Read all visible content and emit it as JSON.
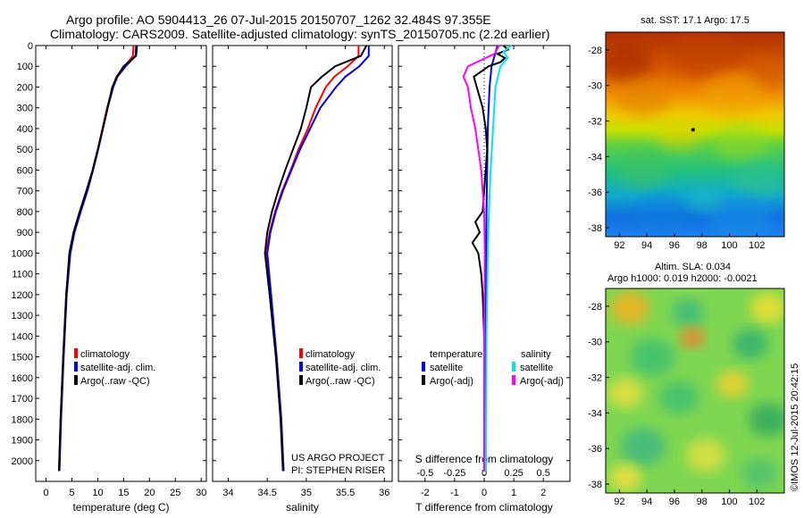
{
  "title_line1": "Argo profile: AO 5904413_26 07-Jul-2015 20150707_1262 32.484S 97.355E",
  "title_line2": "Climatology: CARS2009. Satellite-adjusted climatology: synTS_20150705.nc (2.2d earlier)",
  "credit_text": "US ARGO PROJECT",
  "credit_pi": "PI: STEPHEN RISER",
  "imos_stamp": "©IMOS 12-Jul-2015 20:42:15",
  "chart_data": [
    {
      "type": "line",
      "name": "temperature-profile",
      "xlabel": "temperature (deg C)",
      "ylabel": "",
      "xlim": [
        -2,
        31
      ],
      "ylim": [
        0,
        2100
      ],
      "y_inverted": true,
      "xticks": [
        0,
        5,
        10,
        15,
        20,
        25,
        30
      ],
      "yticks": [
        0,
        100,
        200,
        300,
        400,
        500,
        600,
        700,
        800,
        900,
        1000,
        1100,
        1200,
        1300,
        1400,
        1500,
        1600,
        1700,
        1800,
        1900,
        2000
      ],
      "legend": [
        "climatology",
        "satellite-adj. clim.",
        "Argo(..raw -QC)"
      ],
      "legend_position": "lower-right",
      "series": [
        {
          "name": "climatology",
          "color": "#ff0000",
          "depth": [
            0,
            50,
            100,
            150,
            200,
            300,
            400,
            500,
            600,
            700,
            800,
            900,
            1000,
            1200,
            1500,
            1800,
            2050
          ],
          "values": [
            16.9,
            16.8,
            15.2,
            13.6,
            12.9,
            11.8,
            10.9,
            10.0,
            9.0,
            7.9,
            6.6,
            5.4,
            4.6,
            3.9,
            3.3,
            2.8,
            2.5
          ]
        },
        {
          "name": "satellite-adj. clim.",
          "color": "#0000ff",
          "depth": [
            0,
            50,
            100,
            150,
            200,
            300,
            400,
            500,
            600,
            700,
            800,
            900,
            1000,
            1200,
            1500,
            1800,
            2050
          ],
          "values": [
            17.4,
            17.3,
            15.4,
            13.8,
            13.0,
            11.9,
            11.0,
            10.1,
            9.1,
            8.0,
            6.7,
            5.5,
            4.7,
            4.0,
            3.4,
            2.9,
            2.6
          ]
        },
        {
          "name": "Argo(..raw -QC)",
          "color": "#000000",
          "depth": [
            0,
            50,
            100,
            150,
            200,
            300,
            400,
            500,
            600,
            700,
            800,
            900,
            1000,
            1200,
            1500,
            1800,
            2050
          ],
          "values": [
            17.6,
            17.4,
            15.0,
            13.7,
            12.8,
            11.9,
            11.0,
            10.0,
            9.0,
            7.8,
            6.5,
            5.3,
            4.5,
            3.9,
            3.3,
            2.8,
            2.5
          ]
        }
      ]
    },
    {
      "type": "line",
      "name": "salinity-profile",
      "xlabel": "salinity",
      "xlim": [
        33.8,
        36.1
      ],
      "ylim": [
        0,
        2100
      ],
      "y_inverted": true,
      "xticks": [
        34,
        34.5,
        35,
        35.5,
        36
      ],
      "legend": [
        "climatology",
        "satellite-adj. clim.",
        "Argo(..raw -QC)"
      ],
      "legend_position": "lower-right",
      "series": [
        {
          "name": "climatology",
          "color": "#ff0000",
          "depth": [
            0,
            50,
            100,
            150,
            200,
            300,
            400,
            500,
            600,
            700,
            800,
            900,
            1000,
            1200,
            1500,
            1800,
            2050
          ],
          "values": [
            35.67,
            35.67,
            35.53,
            35.36,
            35.25,
            35.12,
            35.02,
            34.9,
            34.8,
            34.69,
            34.6,
            34.53,
            34.49,
            34.54,
            34.62,
            34.68,
            34.71
          ]
        },
        {
          "name": "satellite-adj. clim.",
          "color": "#0000ff",
          "depth": [
            0,
            50,
            100,
            150,
            200,
            300,
            400,
            500,
            600,
            700,
            800,
            900,
            1000,
            1200,
            1500,
            1800,
            2050
          ],
          "values": [
            35.8,
            35.8,
            35.68,
            35.5,
            35.38,
            35.18,
            35.05,
            34.92,
            34.81,
            34.7,
            34.61,
            34.54,
            34.5,
            34.55,
            34.62,
            34.68,
            34.71
          ]
        },
        {
          "name": "Argo(..raw -QC)",
          "color": "#000000",
          "depth": [
            0,
            50,
            100,
            150,
            200,
            300,
            400,
            500,
            600,
            700,
            800,
            900,
            1000,
            1200,
            1500,
            1800,
            2050
          ],
          "values": [
            35.77,
            35.7,
            35.37,
            35.2,
            35.06,
            35.0,
            34.93,
            34.83,
            34.73,
            34.64,
            34.56,
            34.5,
            34.47,
            34.53,
            34.61,
            34.67,
            34.7
          ]
        }
      ]
    },
    {
      "type": "line",
      "name": "difference-profile",
      "xlabel": "T difference from climatology",
      "xlabel_top": "S difference from climatology",
      "xlim": [
        -2.9,
        2.9
      ],
      "ylim": [
        0,
        2100
      ],
      "y_inverted": true,
      "xticks": [
        -2,
        -1,
        0,
        1,
        2
      ],
      "xticks_s": [
        "-0.5",
        "-0.25",
        "0",
        "0.25",
        "0.5"
      ],
      "legend_temperature_title": "temperature",
      "legend_salinity_title": "salinity",
      "legend_temperature": [
        "satellite",
        "Argo(-adj)"
      ],
      "legend_salinity": [
        "satellite",
        "Argo(-adj)"
      ],
      "series": [
        {
          "name": "T satellite",
          "color": "#0000ff",
          "depth": [
            0,
            100,
            200,
            400,
            800,
            1200,
            2050
          ],
          "values": [
            0.45,
            0.25,
            0.18,
            0.12,
            0.08,
            0.05,
            0.05
          ]
        },
        {
          "name": "T Argo(-adj)",
          "color": "#000000",
          "depth": [
            0,
            20,
            40,
            60,
            80,
            100,
            150,
            200,
            250,
            300,
            400,
            500,
            600,
            700,
            800,
            850,
            900,
            950,
            1000,
            1100,
            1200,
            1400,
            1600,
            1800,
            2050
          ],
          "values": [
            0.65,
            0.8,
            0.45,
            0.7,
            0.55,
            0.15,
            -0.35,
            -0.25,
            -0.15,
            -0.05,
            0.05,
            0.1,
            0.05,
            0.0,
            -0.05,
            -0.3,
            -0.15,
            -0.4,
            -0.2,
            -0.1,
            -0.05,
            0,
            0,
            0,
            0.0
          ]
        },
        {
          "name": "S satellite",
          "color": "#00e5ee",
          "depth": [
            0,
            30,
            60,
            100,
            200,
            400,
            600,
            800,
            1000,
            1400,
            2050
          ],
          "values": [
            0.92,
            0.65,
            0.8,
            0.55,
            0.38,
            0.3,
            0.22,
            0.16,
            0.12,
            0.08,
            0.05
          ]
        },
        {
          "name": "S Argo(-adj)",
          "color": "#ff00ff",
          "depth": [
            0,
            40,
            80,
            100,
            150,
            200,
            300,
            400,
            500,
            600,
            700,
            800,
            1000,
            1400,
            2050
          ],
          "values": [
            0.5,
            0.35,
            -0.25,
            -0.55,
            -0.7,
            -0.55,
            -0.45,
            -0.3,
            -0.2,
            -0.1,
            -0.05,
            0.0,
            0.02,
            0.0,
            0.0
          ]
        }
      ]
    },
    {
      "type": "heatmap",
      "name": "sst-map",
      "title": "sat. SST: 17.1  Argo: 17.5",
      "xticks": [
        92,
        94,
        96,
        98,
        100,
        102
      ],
      "yticks": [
        -28,
        -30,
        -32,
        -34,
        -36,
        -38
      ],
      "xlim": [
        91,
        104
      ],
      "ylim": [
        -38.5,
        -27
      ],
      "argo_position": {
        "lon": 97.355,
        "lat": -32.484
      }
    },
    {
      "type": "heatmap",
      "name": "sla-map",
      "title": "Altim. SLA: 0.034",
      "subtitle": "Argo h1000: 0.019 h2000: -0.0021",
      "xticks": [
        92,
        94,
        96,
        98,
        100,
        102
      ],
      "yticks": [
        -28,
        -30,
        -32,
        -34,
        -36,
        -38
      ],
      "xlim": [
        91,
        104
      ],
      "ylim": [
        -38.5,
        -27
      ]
    }
  ]
}
